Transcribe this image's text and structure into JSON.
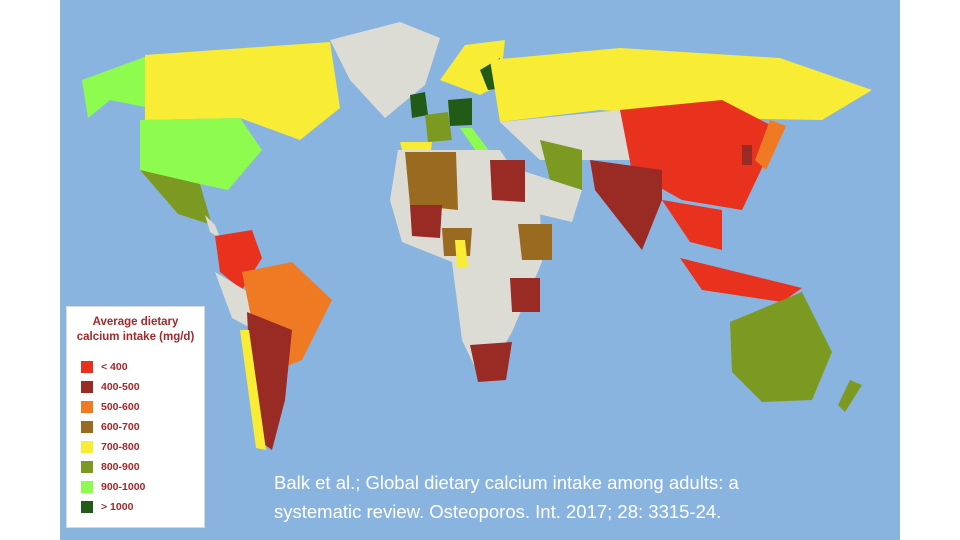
{
  "colors": {
    "ocean": "#8ab4e0",
    "no_data": "#dcdcd4",
    "page": "#ffffff"
  },
  "legend": {
    "title_line1": "Average dietary",
    "title_line2": "calcium intake (mg/d)",
    "items": [
      {
        "label": "< 400",
        "color": "#e8321e"
      },
      {
        "label": "400-500",
        "color": "#992a24"
      },
      {
        "label": "500-600",
        "color": "#f07a24"
      },
      {
        "label": "600-700",
        "color": "#9a6a20"
      },
      {
        "label": "700-800",
        "color": "#f8ec34"
      },
      {
        "label": "800-900",
        "color": "#7c9a22"
      },
      {
        "label": "900-1000",
        "color": "#8efc4e"
      },
      {
        "label": "> 1000",
        "color": "#225a18"
      }
    ]
  },
  "citation": {
    "line1": "Balk et al.; Global dietary calcium intake among adults: a",
    "line2": "systematic review. Osteoporos. Int. 2017; 28: 3315-24."
  }
}
